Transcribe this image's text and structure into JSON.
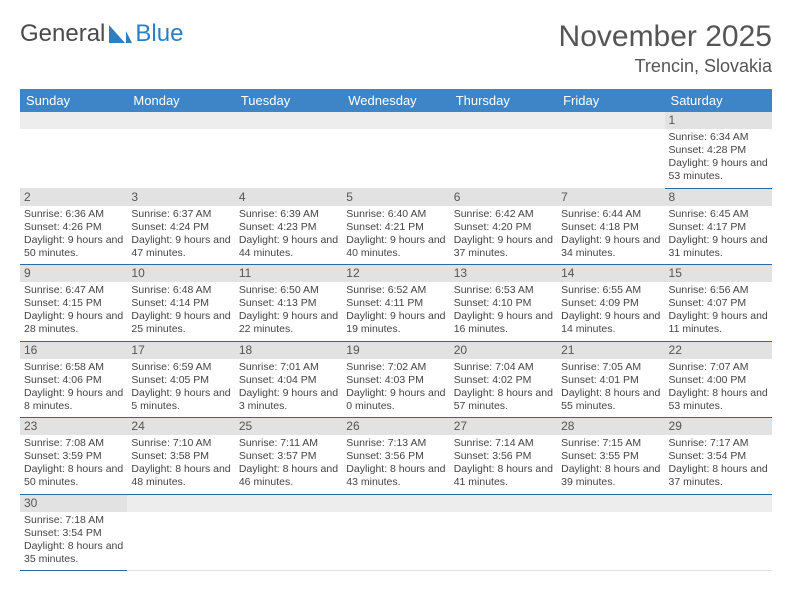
{
  "logo": {
    "text1": "General",
    "text2": "Blue"
  },
  "title": "November 2025",
  "location": "Trencin, Slovakia",
  "colors": {
    "header_bg": "#3d85c6",
    "header_text": "#ffffff",
    "daynum_bg": "#e2e2e2",
    "empty_bg": "#ededed",
    "row_border": "#2d6aa3",
    "text": "#444444",
    "title_text": "#555555"
  },
  "dayHeaders": [
    "Sunday",
    "Monday",
    "Tuesday",
    "Wednesday",
    "Thursday",
    "Friday",
    "Saturday"
  ],
  "weeks": [
    [
      null,
      null,
      null,
      null,
      null,
      null,
      {
        "n": "1",
        "sr": "6:34 AM",
        "ss": "4:28 PM",
        "dl": "9 hours and 53 minutes."
      }
    ],
    [
      {
        "n": "2",
        "sr": "6:36 AM",
        "ss": "4:26 PM",
        "dl": "9 hours and 50 minutes."
      },
      {
        "n": "3",
        "sr": "6:37 AM",
        "ss": "4:24 PM",
        "dl": "9 hours and 47 minutes."
      },
      {
        "n": "4",
        "sr": "6:39 AM",
        "ss": "4:23 PM",
        "dl": "9 hours and 44 minutes."
      },
      {
        "n": "5",
        "sr": "6:40 AM",
        "ss": "4:21 PM",
        "dl": "9 hours and 40 minutes."
      },
      {
        "n": "6",
        "sr": "6:42 AM",
        "ss": "4:20 PM",
        "dl": "9 hours and 37 minutes."
      },
      {
        "n": "7",
        "sr": "6:44 AM",
        "ss": "4:18 PM",
        "dl": "9 hours and 34 minutes."
      },
      {
        "n": "8",
        "sr": "6:45 AM",
        "ss": "4:17 PM",
        "dl": "9 hours and 31 minutes."
      }
    ],
    [
      {
        "n": "9",
        "sr": "6:47 AM",
        "ss": "4:15 PM",
        "dl": "9 hours and 28 minutes."
      },
      {
        "n": "10",
        "sr": "6:48 AM",
        "ss": "4:14 PM",
        "dl": "9 hours and 25 minutes."
      },
      {
        "n": "11",
        "sr": "6:50 AM",
        "ss": "4:13 PM",
        "dl": "9 hours and 22 minutes."
      },
      {
        "n": "12",
        "sr": "6:52 AM",
        "ss": "4:11 PM",
        "dl": "9 hours and 19 minutes."
      },
      {
        "n": "13",
        "sr": "6:53 AM",
        "ss": "4:10 PM",
        "dl": "9 hours and 16 minutes."
      },
      {
        "n": "14",
        "sr": "6:55 AM",
        "ss": "4:09 PM",
        "dl": "9 hours and 14 minutes."
      },
      {
        "n": "15",
        "sr": "6:56 AM",
        "ss": "4:07 PM",
        "dl": "9 hours and 11 minutes."
      }
    ],
    [
      {
        "n": "16",
        "sr": "6:58 AM",
        "ss": "4:06 PM",
        "dl": "9 hours and 8 minutes."
      },
      {
        "n": "17",
        "sr": "6:59 AM",
        "ss": "4:05 PM",
        "dl": "9 hours and 5 minutes."
      },
      {
        "n": "18",
        "sr": "7:01 AM",
        "ss": "4:04 PM",
        "dl": "9 hours and 3 minutes."
      },
      {
        "n": "19",
        "sr": "7:02 AM",
        "ss": "4:03 PM",
        "dl": "9 hours and 0 minutes."
      },
      {
        "n": "20",
        "sr": "7:04 AM",
        "ss": "4:02 PM",
        "dl": "8 hours and 57 minutes."
      },
      {
        "n": "21",
        "sr": "7:05 AM",
        "ss": "4:01 PM",
        "dl": "8 hours and 55 minutes."
      },
      {
        "n": "22",
        "sr": "7:07 AM",
        "ss": "4:00 PM",
        "dl": "8 hours and 53 minutes."
      }
    ],
    [
      {
        "n": "23",
        "sr": "7:08 AM",
        "ss": "3:59 PM",
        "dl": "8 hours and 50 minutes."
      },
      {
        "n": "24",
        "sr": "7:10 AM",
        "ss": "3:58 PM",
        "dl": "8 hours and 48 minutes."
      },
      {
        "n": "25",
        "sr": "7:11 AM",
        "ss": "3:57 PM",
        "dl": "8 hours and 46 minutes."
      },
      {
        "n": "26",
        "sr": "7:13 AM",
        "ss": "3:56 PM",
        "dl": "8 hours and 43 minutes."
      },
      {
        "n": "27",
        "sr": "7:14 AM",
        "ss": "3:56 PM",
        "dl": "8 hours and 41 minutes."
      },
      {
        "n": "28",
        "sr": "7:15 AM",
        "ss": "3:55 PM",
        "dl": "8 hours and 39 minutes."
      },
      {
        "n": "29",
        "sr": "7:17 AM",
        "ss": "3:54 PM",
        "dl": "8 hours and 37 minutes."
      }
    ],
    [
      {
        "n": "30",
        "sr": "7:18 AM",
        "ss": "3:54 PM",
        "dl": "8 hours and 35 minutes."
      },
      null,
      null,
      null,
      null,
      null,
      null
    ]
  ],
  "labels": {
    "sunrise": "Sunrise: ",
    "sunset": "Sunset: ",
    "daylight": "Daylight: "
  }
}
